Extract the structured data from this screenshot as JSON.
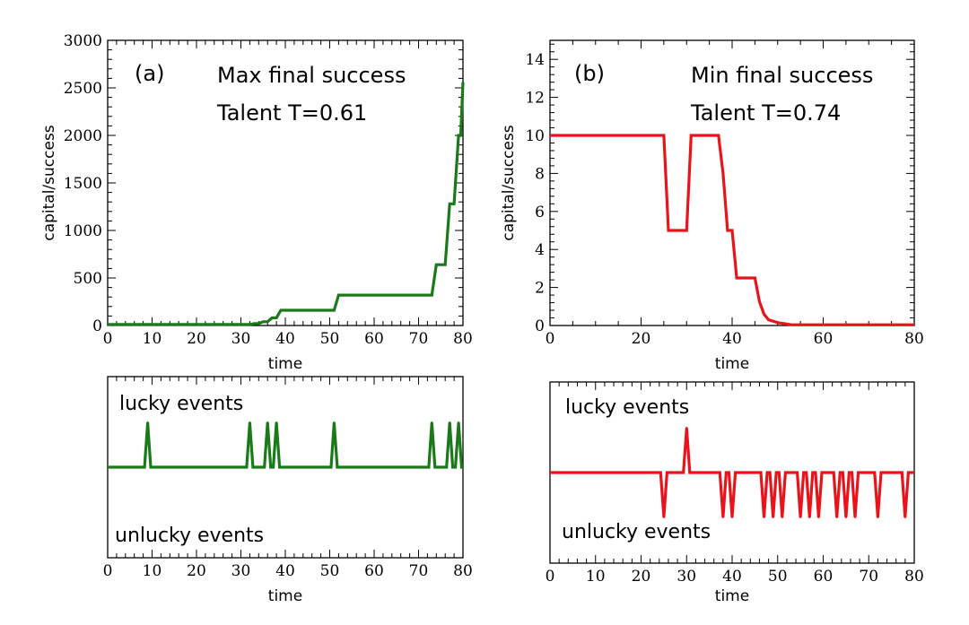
{
  "chart_data": [
    {
      "type": "line",
      "panel": "top-left",
      "annotation": "(a)",
      "title": "Max final success",
      "subtitle": "Talent T=0.61",
      "xlabel": "time",
      "ylabel": "capital/success",
      "xlim": [
        0,
        80
      ],
      "ylim": [
        0,
        3000
      ],
      "xticks": [
        0,
        10,
        20,
        30,
        40,
        50,
        60,
        70,
        80
      ],
      "yticks": [
        0,
        500,
        1000,
        1500,
        2000,
        2500,
        3000
      ],
      "color": "#1a7a1a",
      "series": [
        {
          "name": "capital",
          "x": [
            0,
            32,
            33,
            34,
            35,
            36,
            37,
            38,
            39,
            51,
            52,
            73,
            74,
            76,
            77,
            78,
            79,
            79.5,
            80
          ],
          "y": [
            10,
            10,
            20,
            20,
            40,
            40,
            80,
            80,
            160,
            160,
            320,
            320,
            640,
            640,
            1280,
            1280,
            2000,
            2000,
            2560
          ]
        }
      ]
    },
    {
      "type": "line",
      "panel": "top-right",
      "annotation": "(b)",
      "title": "Min final success",
      "subtitle": "Talent T=0.74",
      "xlabel": "time",
      "ylabel": "capital/success",
      "xlim": [
        0,
        80
      ],
      "ylim": [
        0,
        15
      ],
      "xticks": [
        0,
        20,
        40,
        60,
        80
      ],
      "yticks": [
        0,
        2,
        4,
        6,
        8,
        10,
        12,
        14
      ],
      "color": "#e8141a",
      "series": [
        {
          "name": "capital",
          "x": [
            0,
            25,
            26,
            29,
            30,
            31,
            37,
            38,
            39,
            40,
            41,
            45,
            46,
            47,
            48,
            50,
            52,
            53,
            80
          ],
          "y": [
            10,
            10,
            5,
            5,
            5,
            10,
            10,
            8,
            5,
            5,
            2.5,
            2.5,
            1.25,
            0.6,
            0.3,
            0.15,
            0.08,
            0.04,
            0.04
          ]
        }
      ]
    },
    {
      "type": "line",
      "panel": "bottom-left",
      "xlabel": "time",
      "xlim": [
        0,
        80
      ],
      "xticks": [
        0,
        10,
        20,
        30,
        40,
        50,
        60,
        70,
        80
      ],
      "lucky_label": "lucky events",
      "unlucky_label": "unlucky events",
      "color": "#1a7a1a",
      "series": [
        {
          "name": "events",
          "lucky_times": [
            9,
            32,
            36,
            38,
            51,
            73,
            77,
            79
          ],
          "unlucky_times": []
        }
      ]
    },
    {
      "type": "line",
      "panel": "bottom-right",
      "xlabel": "time",
      "xlim": [
        0,
        80
      ],
      "xticks": [
        0,
        10,
        20,
        30,
        40,
        50,
        60,
        70,
        80
      ],
      "lucky_label": "lucky events",
      "unlucky_label": "unlucky events",
      "color": "#e8141a",
      "series": [
        {
          "name": "events",
          "lucky_times": [
            30
          ],
          "unlucky_times": [
            25,
            38,
            40,
            47,
            49,
            51,
            55,
            57,
            59,
            63,
            65,
            67,
            72,
            78
          ]
        }
      ]
    }
  ]
}
